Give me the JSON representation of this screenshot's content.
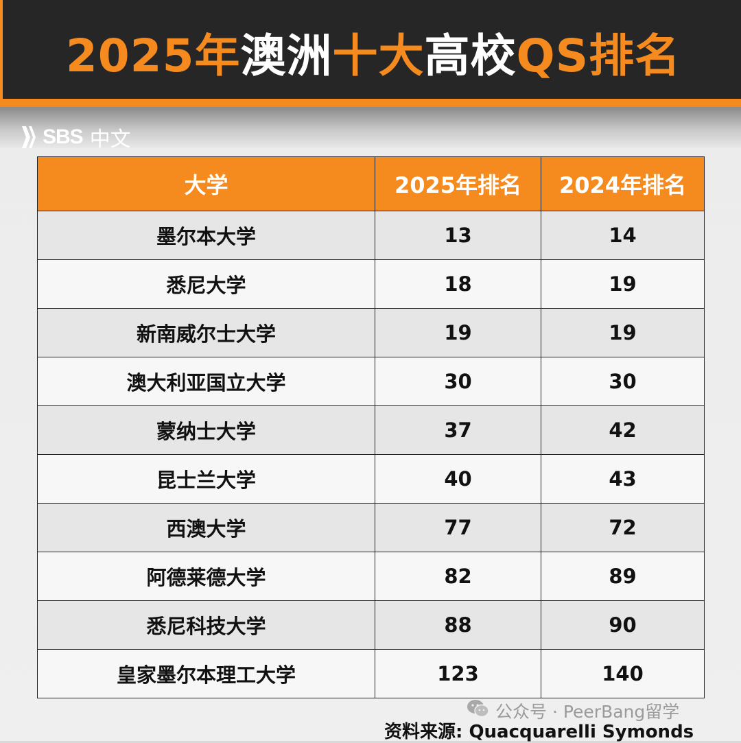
{
  "title": {
    "part1": "2025年",
    "part2": "澳洲",
    "part3": "十大",
    "part4": "高校",
    "part5": "QS排名"
  },
  "colors": {
    "accent": "#f58a1f",
    "header_bg": "#262626",
    "row_odd": "#e6e6e6",
    "row_even": "#f7f7f7"
  },
  "logo": {
    "icon": "sbs-wave-icon",
    "brand": "SBS",
    "lang": "中文"
  },
  "table": {
    "headers": [
      "大学",
      "2025年排名",
      "2024年排名"
    ],
    "rows": [
      {
        "name": "墨尔本大学",
        "rank_2025": "13",
        "rank_2024": "14"
      },
      {
        "name": "悉尼大学",
        "rank_2025": "18",
        "rank_2024": "19"
      },
      {
        "name": "新南威尔士大学",
        "rank_2025": "19",
        "rank_2024": "19"
      },
      {
        "name": "澳大利亚国立大学",
        "rank_2025": "30",
        "rank_2024": "30"
      },
      {
        "name": "蒙纳士大学",
        "rank_2025": "37",
        "rank_2024": "42"
      },
      {
        "name": "昆士兰大学",
        "rank_2025": "40",
        "rank_2024": "43"
      },
      {
        "name": "西澳大学",
        "rank_2025": "77",
        "rank_2024": "72"
      },
      {
        "name": "阿德莱德大学",
        "rank_2025": "82",
        "rank_2024": "89"
      },
      {
        "name": "悉尼科技大学",
        "rank_2025": "88",
        "rank_2024": "90"
      },
      {
        "name": "皇家墨尔本理工大学",
        "rank_2025": "123",
        "rank_2024": "140"
      }
    ]
  },
  "watermark": {
    "icon": "wechat-icon",
    "text": "公众号 · PeerBang留学"
  },
  "source": "资料来源: Quacquarelli Symonds"
}
